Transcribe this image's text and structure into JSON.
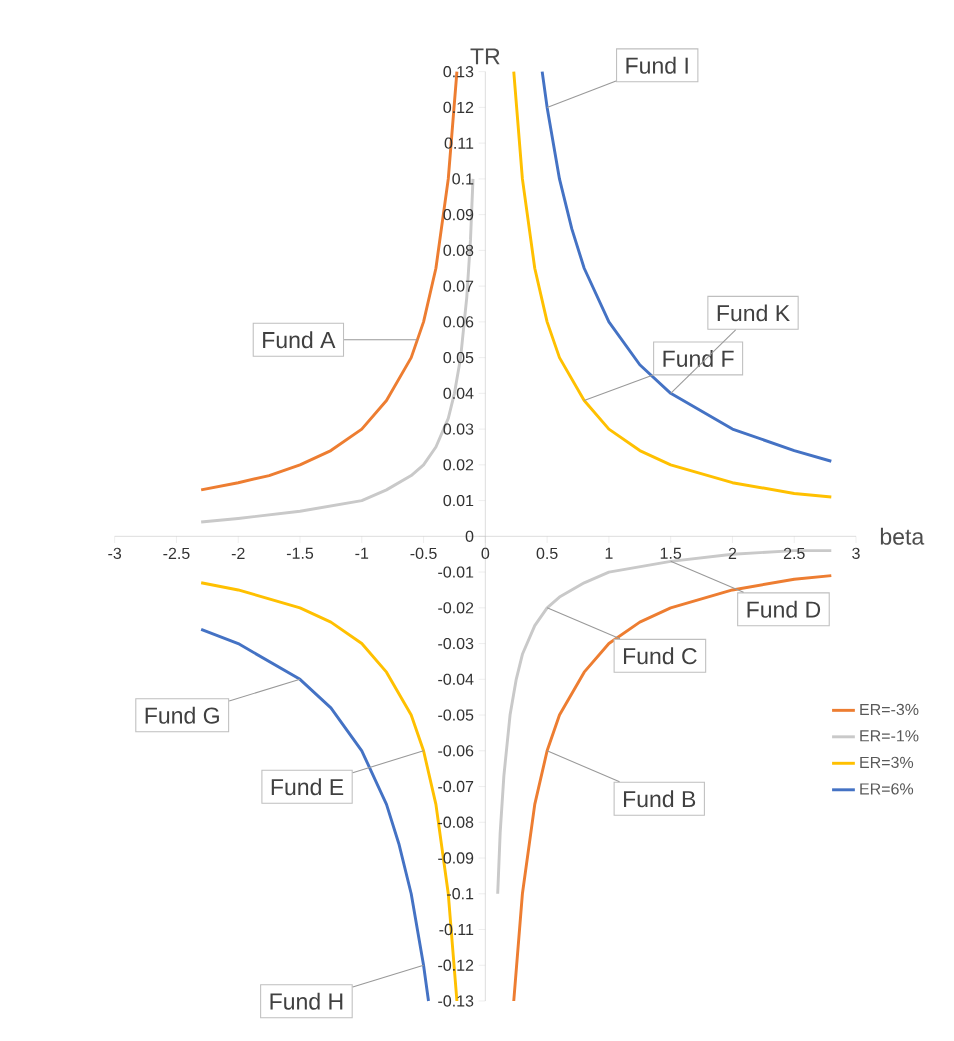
{
  "chart_data": {
    "type": "line",
    "xlabel": "beta",
    "ylabel": "TR",
    "xlim": [
      -3,
      3
    ],
    "ylim": [
      -0.13,
      0.13
    ],
    "xticks": [
      -3,
      -2.5,
      -2,
      -1.5,
      -1,
      -0.5,
      0,
      0.5,
      1,
      1.5,
      2,
      2.5,
      3
    ],
    "yticks": [
      -0.13,
      -0.12,
      -0.11,
      -0.1,
      -0.09,
      -0.08,
      -0.07,
      -0.06,
      -0.05,
      -0.04,
      -0.03,
      -0.02,
      -0.01,
      0,
      0.01,
      0.02,
      0.03,
      0.04,
      0.05,
      0.06,
      0.07,
      0.08,
      0.09,
      0.1,
      0.11,
      0.12,
      0.13
    ],
    "grid": false,
    "legend": "right",
    "marker": "none",
    "line_style": "solid",
    "series": [
      {
        "name": "ER=-3%",
        "color": "#ed7d31",
        "x": [
          -2.3,
          -2,
          -1.75,
          -1.5,
          -1.25,
          -1,
          -0.8,
          -0.6,
          -0.5,
          -0.4,
          -0.3,
          -0.23,
          0,
          0.23,
          0.3,
          0.4,
          0.5,
          0.6,
          0.8,
          1,
          1.25,
          1.5,
          2,
          2.5,
          2.8
        ],
        "values": [
          0.013,
          0.015,
          0.017,
          0.02,
          0.024,
          0.03,
          0.038,
          0.05,
          0.06,
          0.075,
          0.1,
          0.13,
          null,
          -0.13,
          -0.1,
          -0.075,
          -0.06,
          -0.05,
          -0.038,
          -0.03,
          -0.024,
          -0.02,
          -0.015,
          -0.012,
          -0.011
        ]
      },
      {
        "name": "ER=-1%",
        "color": "#c9c9c9",
        "x": [
          -2.3,
          -2,
          -1.5,
          -1,
          -0.8,
          -0.6,
          -0.5,
          -0.4,
          -0.3,
          -0.25,
          -0.2,
          -0.15,
          -0.12,
          -0.1,
          0,
          0.1,
          0.12,
          0.15,
          0.2,
          0.25,
          0.3,
          0.4,
          0.5,
          0.6,
          0.8,
          1,
          1.5,
          2,
          2.5,
          2.8
        ],
        "values": [
          0.004,
          0.005,
          0.007,
          0.01,
          0.013,
          0.017,
          0.02,
          0.025,
          0.033,
          0.04,
          0.05,
          0.067,
          0.083,
          0.1,
          null,
          -0.1,
          -0.083,
          -0.067,
          -0.05,
          -0.04,
          -0.033,
          -0.025,
          -0.02,
          -0.017,
          -0.013,
          -0.01,
          -0.007,
          -0.005,
          -0.004,
          -0.004
        ]
      },
      {
        "name": "ER=3%",
        "color": "#ffc000",
        "x": [
          -2.3,
          -2,
          -1.5,
          -1.25,
          -1,
          -0.8,
          -0.6,
          -0.5,
          -0.4,
          -0.3,
          -0.23,
          0,
          0.23,
          0.3,
          0.4,
          0.5,
          0.6,
          0.8,
          1,
          1.25,
          1.5,
          2,
          2.5,
          2.8
        ],
        "values": [
          -0.013,
          -0.015,
          -0.02,
          -0.024,
          -0.03,
          -0.038,
          -0.05,
          -0.06,
          -0.075,
          -0.1,
          -0.13,
          null,
          0.13,
          0.1,
          0.075,
          0.06,
          0.05,
          0.038,
          0.03,
          0.024,
          0.02,
          0.015,
          0.012,
          0.011
        ]
      },
      {
        "name": "ER=6%",
        "color": "#4472c4",
        "x": [
          -2.3,
          -2,
          -1.5,
          -1.25,
          -1,
          -0.8,
          -0.7,
          -0.6,
          -0.5,
          -0.46,
          0,
          0.46,
          0.5,
          0.6,
          0.7,
          0.8,
          1,
          1.25,
          1.5,
          2,
          2.5,
          2.8
        ],
        "values": [
          -0.026,
          -0.03,
          -0.04,
          -0.048,
          -0.06,
          -0.075,
          -0.086,
          -0.1,
          -0.12,
          -0.13,
          null,
          0.13,
          0.12,
          0.1,
          0.086,
          0.075,
          0.06,
          0.048,
          0.04,
          0.03,
          0.024,
          0.021
        ]
      }
    ],
    "annotations": [
      {
        "text": "Fund A",
        "x": -0.55,
        "y": 0.055
      },
      {
        "text": "Fund B",
        "x": 0.5,
        "y": -0.06
      },
      {
        "text": "Fund C",
        "x": 0.5,
        "y": -0.02
      },
      {
        "text": "Fund D",
        "x": 1.5,
        "y": -0.007
      },
      {
        "text": "Fund E",
        "x": -0.5,
        "y": -0.06
      },
      {
        "text": "Fund F",
        "x": 0.8,
        "y": 0.038
      },
      {
        "text": "Fund G",
        "x": -1.5,
        "y": -0.04
      },
      {
        "text": "Fund H",
        "x": -0.5,
        "y": -0.12
      },
      {
        "text": "Fund I",
        "x": 0.5,
        "y": 0.12
      },
      {
        "text": "Fund K",
        "x": 1.5,
        "y": 0.04
      }
    ]
  }
}
